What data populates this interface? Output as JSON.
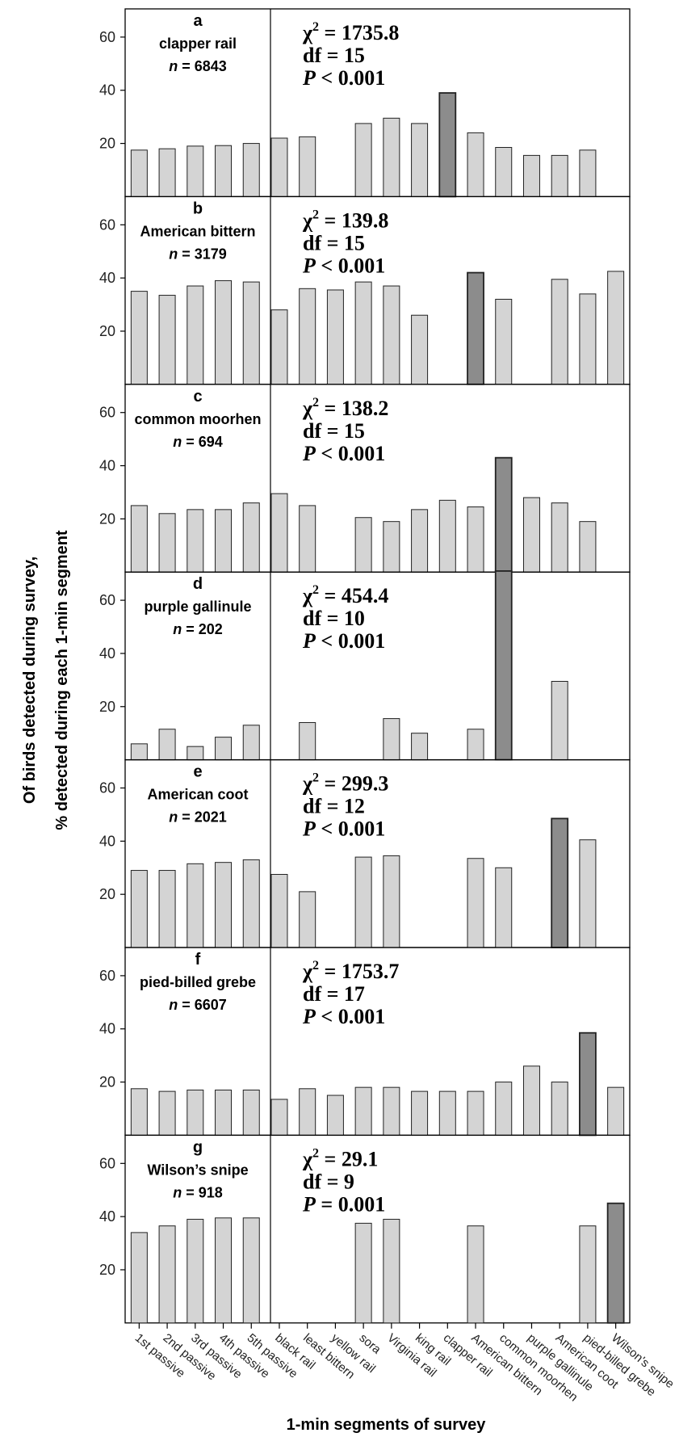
{
  "chart_data": {
    "type": "bar",
    "xlabel": "1-min segments of survey",
    "ylabel": [
      "Of birds detected during survey,",
      "% detected during each 1-min segment"
    ],
    "categories": [
      "1st passive",
      "2nd passive",
      "3rd passive",
      "4th passive",
      "5th passive",
      "black rail",
      "least bittern",
      "yellow rail",
      "sora",
      "Virginia rail",
      "king rail",
      "clapper rail",
      "American bittern",
      "common moorhen",
      "purple gallinule",
      "American coot",
      "pied-billed grebe",
      "Wilson's snipe"
    ],
    "ylim": [
      0,
      70
    ],
    "yticks": [
      20,
      40,
      60
    ],
    "colors": {
      "normal": "#d4d4d4",
      "highlight": "#8c8c8c",
      "edge": "#222222"
    },
    "panels": [
      {
        "letter": "a",
        "species": "clapper rail",
        "n_label": "n",
        "n_value": " = 6843",
        "stats": {
          "chi": "χ",
          "chi_sup": "2",
          "chi_val": " = 1735.8",
          "df": "df = 15",
          "p_sym": "P",
          "p_val": " < 0.001"
        },
        "values": [
          17.5,
          18,
          19,
          19.2,
          20,
          22,
          22.5,
          null,
          27.5,
          29.5,
          27.5,
          39,
          24,
          18.5,
          15.5,
          15.5,
          17.5,
          null
        ],
        "highlight": 11
      },
      {
        "letter": "b",
        "species": "American bittern",
        "n_label": "n",
        "n_value": " = 3179",
        "stats": {
          "chi": "χ",
          "chi_sup": "2",
          "chi_val": " = 139.8",
          "df": "df = 15",
          "p_sym": "P",
          "p_val": " < 0.001"
        },
        "values": [
          35,
          33.5,
          37,
          39,
          38.5,
          28,
          36,
          35.5,
          38.5,
          37,
          26,
          null,
          42,
          32,
          null,
          39.5,
          34,
          42.5
        ],
        "highlight": 12
      },
      {
        "letter": "c",
        "species": "common moorhen",
        "n_label": "n",
        "n_value": " = 694",
        "stats": {
          "chi": "χ",
          "chi_sup": "2",
          "chi_val": " = 138.2",
          "df": "df = 15",
          "p_sym": "P",
          "p_val": " < 0.001"
        },
        "values": [
          25,
          22,
          23.5,
          23.5,
          26,
          29.5,
          25,
          null,
          20.5,
          19,
          23.5,
          27,
          24.5,
          43,
          28,
          26,
          19,
          null
        ],
        "highlight": 13
      },
      {
        "letter": "d",
        "species": "purple gallinule",
        "n_label": "n",
        "n_value": " = 202",
        "stats": {
          "chi": "χ",
          "chi_sup": "2",
          "chi_val": " = 454.4",
          "df": "df = 10",
          "p_sym": "P",
          "p_val": " < 0.001"
        },
        "values": [
          6,
          11.5,
          5,
          8.5,
          13,
          null,
          14,
          null,
          null,
          15.5,
          10,
          null,
          11.5,
          71,
          null,
          29.5,
          null,
          null
        ],
        "highlight": 13
      },
      {
        "letter": "e",
        "species": "American coot",
        "n_label": "n",
        "n_value": " = 2021",
        "stats": {
          "chi": "χ",
          "chi_sup": "2",
          "chi_val": " = 299.3",
          "df": "df = 12",
          "p_sym": "P",
          "p_val": " < 0.001"
        },
        "values": [
          29,
          29,
          31.5,
          32,
          33,
          27.5,
          21,
          null,
          34,
          34.5,
          null,
          null,
          33.5,
          30,
          null,
          48.5,
          40.5,
          null
        ],
        "highlight": 15
      },
      {
        "letter": "f",
        "species": "pied-billed grebe",
        "n_label": "n",
        "n_value": " = 6607",
        "stats": {
          "chi": "χ",
          "chi_sup": "2",
          "chi_val": " = 1753.7",
          "df": "df = 17",
          "p_sym": "P",
          "p_val": " < 0.001"
        },
        "values": [
          17.5,
          16.5,
          17,
          17,
          17,
          13.5,
          17.5,
          15,
          18,
          18,
          16.5,
          16.5,
          16.5,
          20,
          26,
          20,
          38.5,
          18
        ],
        "highlight": 16
      },
      {
        "letter": "g",
        "species": "Wilson’s snipe",
        "n_label": "n",
        "n_value": " = 918",
        "stats": {
          "chi": "χ",
          "chi_sup": "2",
          "chi_val": " = 29.1",
          "df": "df = 9",
          "p_sym": "P",
          "p_val": " = 0.001"
        },
        "values": [
          34,
          36.5,
          39,
          39.5,
          39.5,
          null,
          null,
          null,
          37.5,
          39,
          null,
          null,
          36.5,
          null,
          null,
          null,
          36.5,
          45
        ],
        "highlight": 17
      }
    ]
  }
}
